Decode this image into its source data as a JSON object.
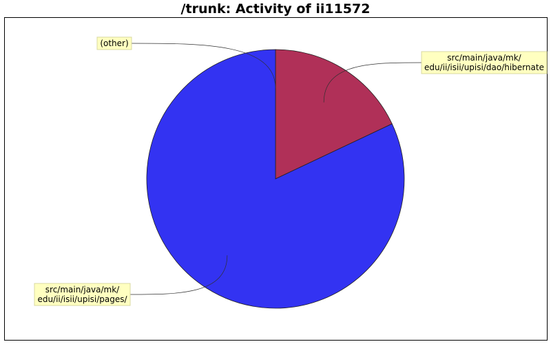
{
  "chart_data": {
    "type": "pie",
    "title": "/trunk: Activity of ii11572",
    "slices": [
      {
        "label": [
          "src/main/java/mk/",
          "edu/ii/isii/upisi/dao/hibernate"
        ],
        "value": 18,
        "color": "#b03058"
      },
      {
        "label": [
          "src/main/java/mk/",
          "edu/ii/isii/upisi/pages/"
        ],
        "value": 82,
        "color": "#3333f2"
      },
      {
        "label": [
          "(other)"
        ],
        "value": 0,
        "color": "#d0d0d0"
      }
    ],
    "legend": "none",
    "label_box_color": "#ffffc0"
  }
}
